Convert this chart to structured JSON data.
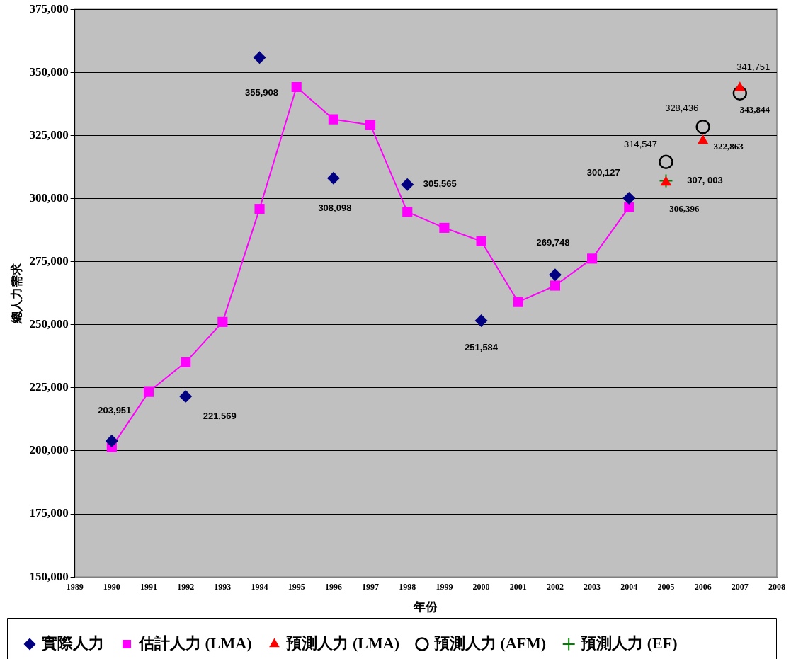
{
  "chart_data": {
    "type": "line",
    "xlabel": "年份",
    "ylabel": "總人力需求",
    "xlim": [
      1989,
      2008
    ],
    "xticks": [
      1989,
      1990,
      1991,
      1992,
      1993,
      1994,
      1995,
      1996,
      1997,
      1998,
      1999,
      2000,
      2001,
      2002,
      2003,
      2004,
      2005,
      2006,
      2007,
      2008
    ],
    "ylim": [
      150000,
      375000
    ],
    "yticks": [
      {
        "value": 150000,
        "label": "150,000"
      },
      {
        "value": 175000,
        "label": "175,000"
      },
      {
        "value": 200000,
        "label": "200,000"
      },
      {
        "value": 225000,
        "label": "225,000"
      },
      {
        "value": 250000,
        "label": "250,000"
      },
      {
        "value": 275000,
        "label": "275,000"
      },
      {
        "value": 300000,
        "label": "300,000"
      },
      {
        "value": 325000,
        "label": "325,000"
      },
      {
        "value": 350000,
        "label": "350,000"
      },
      {
        "value": 375000,
        "label": "375,000"
      }
    ],
    "grid": "y",
    "legend": "bottom",
    "series": [
      {
        "name": "實際人力",
        "type": "scatter",
        "marker": "diamond",
        "color": "#000080",
        "x": [
          1990,
          1992,
          1994,
          1996,
          1998,
          2000,
          2002,
          2004
        ],
        "values": [
          203951,
          221569,
          355908,
          308098,
          305565,
          251584,
          269748,
          300127
        ],
        "value_labels": [
          "203,951",
          "221,569",
          "355,908",
          "308,098",
          "305,565",
          "251,584",
          "269,748",
          "300,127"
        ]
      },
      {
        "name": "估計人力 (LMA)",
        "type": "line",
        "marker": "square",
        "line_style": "solid",
        "color": "#ff00ff",
        "x": [
          1990,
          1991,
          1992,
          1993,
          1994,
          1995,
          1996,
          1997,
          1998,
          1999,
          2000,
          2001,
          2002,
          2003,
          2004
        ],
        "values": [
          201500,
          223400,
          235100,
          251100,
          295900,
          344200,
          331400,
          329200,
          294700,
          288400,
          283100,
          259000,
          265500,
          276200,
          296600
        ]
      },
      {
        "name": "預測人力 (LMA)",
        "type": "scatter",
        "marker": "triangle",
        "color": "#ff0000",
        "x": [
          2005,
          2006,
          2007
        ],
        "values": [
          306396,
          322863,
          343844
        ],
        "value_labels": [
          "306,396",
          "322,863",
          "343,844"
        ]
      },
      {
        "name": "預測人力 (AFM)",
        "type": "scatter",
        "marker": "circle",
        "color": "#000000",
        "x": [
          2005,
          2006,
          2007
        ],
        "values": [
          314547,
          328436,
          341751
        ],
        "value_labels": [
          "314,547",
          "328,436",
          "341,751"
        ]
      },
      {
        "name": "預測人力 (EF)",
        "type": "scatter",
        "marker": "cross",
        "color": "#008000",
        "x": [
          2005
        ],
        "values": [
          307003
        ],
        "value_labels": [
          "307, 003"
        ]
      }
    ]
  }
}
